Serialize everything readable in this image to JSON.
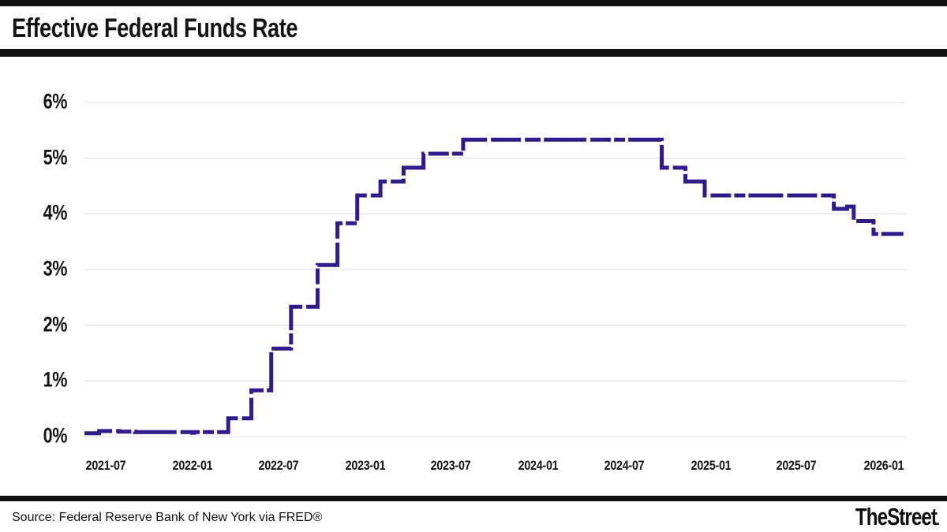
{
  "header": {
    "title": "Effective Federal Funds Rate"
  },
  "footer": {
    "source": "Source: Federal Reserve Bank of New York via FRED®",
    "logo_text": "TheStreet",
    "logo_period": "."
  },
  "colors": {
    "bar": "#101010",
    "line": "#2c1d8a",
    "grid": "#e3e3e3",
    "text": "#141414"
  },
  "chart_data": {
    "type": "line",
    "line_style": "step",
    "title": "Effective Federal Funds Rate",
    "xlabel": "",
    "ylabel": "",
    "ylim": [
      0,
      6
    ],
    "grid": "horizontal-only",
    "legend": "none",
    "line_color": "#2c1d8a",
    "y_tick_labels": [
      "0%",
      "1%",
      "2%",
      "3%",
      "4%",
      "5%",
      "6%"
    ],
    "x_ticks": [
      "2021-07",
      "2022-01",
      "2022-07",
      "2023-01",
      "2023-07",
      "2024-01",
      "2024-07",
      "2025-01",
      "2025-07",
      "2026-01"
    ],
    "x_domain": [
      "2021-05-17",
      "2026-02-12"
    ],
    "series": [
      {
        "name": "Effective Federal Funds Rate",
        "unit": "percent",
        "points": [
          [
            "2021-05-17",
            0.06
          ],
          [
            "2021-06-17",
            0.1
          ],
          [
            "2021-07-29",
            0.09
          ],
          [
            "2021-09-01",
            0.08
          ],
          [
            "2021-12-31",
            0.07
          ],
          [
            "2022-01-04",
            0.08
          ],
          [
            "2022-03-17",
            0.33
          ],
          [
            "2022-05-05",
            0.83
          ],
          [
            "2022-06-16",
            1.58
          ],
          [
            "2022-07-28",
            2.33
          ],
          [
            "2022-09-22",
            3.08
          ],
          [
            "2022-11-03",
            3.83
          ],
          [
            "2022-12-15",
            4.33
          ],
          [
            "2023-02-02",
            4.58
          ],
          [
            "2023-03-23",
            4.83
          ],
          [
            "2023-05-04",
            5.08
          ],
          [
            "2023-07-27",
            5.33
          ],
          [
            "2024-09-19",
            4.83
          ],
          [
            "2024-11-08",
            4.58
          ],
          [
            "2024-12-19",
            4.33
          ],
          [
            "2025-09-18",
            4.09
          ],
          [
            "2025-10-16",
            4.13
          ],
          [
            "2025-10-30",
            3.87
          ],
          [
            "2025-12-11",
            3.64
          ],
          [
            "2026-02-12",
            3.64
          ]
        ]
      }
    ]
  }
}
